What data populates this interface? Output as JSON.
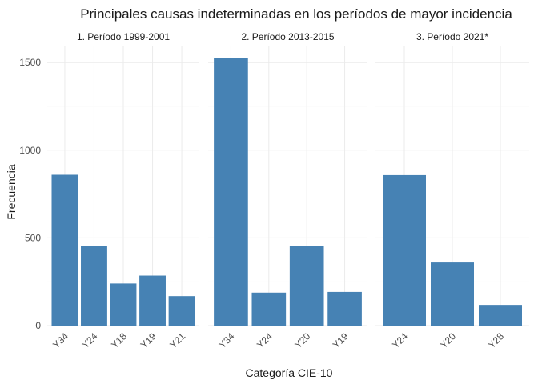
{
  "chart_data": {
    "type": "bar",
    "title": "Principales causas indeterminadas en los períodos de mayor incidencia",
    "xlabel": "Categoría CIE-10",
    "ylabel": "Frecuencia",
    "ylim": [
      0,
      1600
    ],
    "yticks": [
      0,
      500,
      1000,
      1500
    ],
    "bar_color": "#4682B4",
    "grid": true,
    "panels": [
      {
        "name": "1. Período 1999-2001",
        "categories": [
          "Y34",
          "Y24",
          "Y18",
          "Y19",
          "Y21"
        ],
        "values": [
          860,
          452,
          240,
          285,
          168
        ]
      },
      {
        "name": "2. Período 2013-2015",
        "categories": [
          "Y34",
          "Y24",
          "Y20",
          "Y19"
        ],
        "values": [
          1525,
          188,
          452,
          192
        ]
      },
      {
        "name": "3. Período 2021*",
        "categories": [
          "Y24",
          "Y20",
          "Y28"
        ],
        "values": [
          858,
          360,
          118
        ]
      }
    ]
  }
}
